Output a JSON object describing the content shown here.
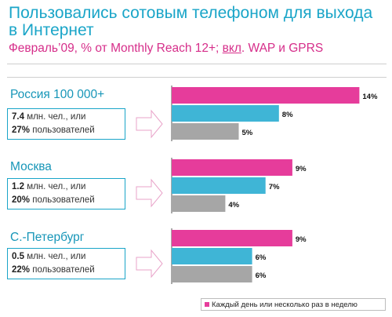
{
  "title": "Пользовались сотовым телефоном для выхода в Интернет",
  "subtitle_pre": "Февраль’09, % от Monthly Reach 12+; ",
  "subtitle_underlined": "вкл",
  "subtitle_post": ". WAP и GPRS",
  "colors": {
    "accent_title": "#1aa5c8",
    "accent_subtitle": "#d62e8a",
    "bar_pink": "#e63c9b",
    "bar_blue": "#3fb5d6",
    "bar_gray": "#a6a6a6"
  },
  "regions": [
    {
      "name": "Россия 100 000+",
      "line1_value": "7.4",
      "line1_text": " млн. чел., или",
      "line2_value": "27%",
      "line2_text": " пользователей"
    },
    {
      "name": "Москва",
      "line1_value": "1.2",
      "line1_text": " млн. чел., или",
      "line2_value": "20%",
      "line2_text": " пользователей"
    },
    {
      "name": "С.-Петербург",
      "line1_value": "0.5",
      "line1_text": " млн. чел., или",
      "line2_value": "22%",
      "line2_text": " пользователей"
    }
  ],
  "legend": {
    "visible_entry": "Каждый день или несколько раз в неделю"
  },
  "chart_data": {
    "type": "bar",
    "orientation": "horizontal",
    "categories": [
      "Россия 100 000+",
      "Москва",
      "С.-Петербург"
    ],
    "series": [
      {
        "name": "Каждый день или несколько раз в неделю",
        "color": "#e63c9b",
        "values": [
          14,
          9,
          9
        ]
      },
      {
        "color": "#3fb5d6",
        "values": [
          8,
          7,
          6
        ]
      },
      {
        "color": "#a6a6a6",
        "values": [
          5,
          4,
          6
        ]
      }
    ],
    "value_labels": [
      [
        "14%",
        "8%",
        "5%"
      ],
      [
        "9%",
        "7%",
        "4%"
      ],
      [
        "9%",
        "6%",
        "6%"
      ]
    ],
    "unit": "%"
  }
}
